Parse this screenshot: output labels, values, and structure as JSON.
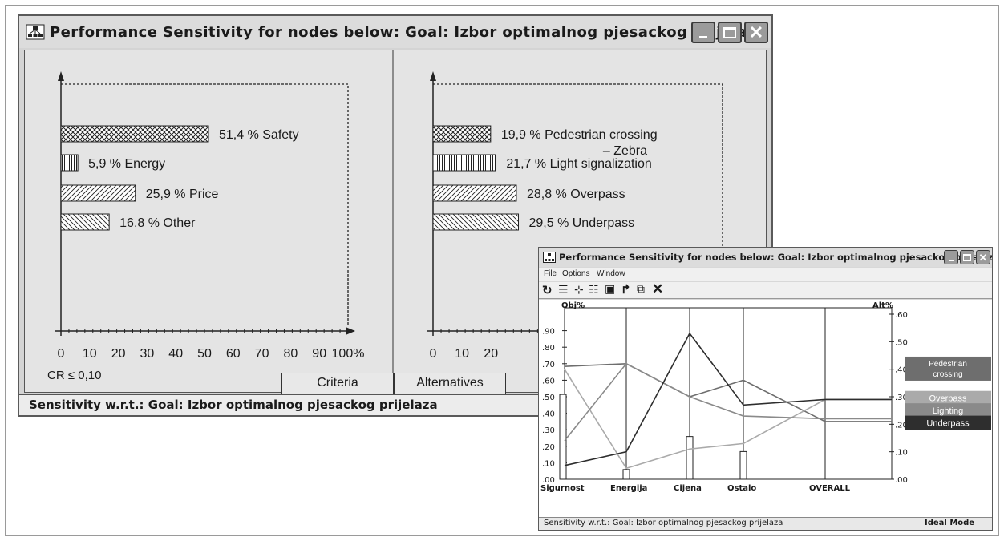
{
  "colors": {
    "window_bg": "#d4d4d4",
    "panel_bg": "#e4e4e4",
    "frame": "#5a5a5a",
    "legend_pedestrian": "#6e6e6e",
    "legend_overpass": "#aaaaaa",
    "legend_lighting": "#8a8a8a",
    "legend_underpass": "#2e2e2e"
  },
  "main_window": {
    "title": "Performance Sensitivity for nodes below: Goal: Izbor optimalnog pjesackog prijelaza",
    "app_icon": "network-icon",
    "controls": {
      "minimize": "minimize-icon",
      "maximize": "maximize-icon",
      "close": "close-icon"
    },
    "criteria_chart": {
      "bars": [
        {
          "value": 51.4,
          "label": "51,4 %",
          "name": "Safety",
          "pattern": "crosshatch"
        },
        {
          "value": 5.9,
          "label": "5,9 %",
          "name": "Energy",
          "pattern": "vertical"
        },
        {
          "value": 25.9,
          "label": "25,9 %",
          "name": "Price",
          "pattern": "diagonal"
        },
        {
          "value": 16.8,
          "label": "16,8 %",
          "name": "Other",
          "pattern": "backdiagonal"
        }
      ],
      "ticks": [
        "0",
        "10",
        "20",
        "30",
        "40",
        "50",
        "60",
        "70",
        "80",
        "90",
        "100%"
      ]
    },
    "alternatives_chart": {
      "bars": [
        {
          "value": 19.9,
          "label": "19,9 %",
          "name": "Pedestrian crossing",
          "name2": "– Zebra",
          "pattern": "crosshatch"
        },
        {
          "value": 21.7,
          "label": "21,7 %",
          "name": "Light signalization",
          "pattern": "vertical"
        },
        {
          "value": 28.8,
          "label": "28,8 %",
          "name": "Overpass",
          "pattern": "diagonal"
        },
        {
          "value": 29.5,
          "label": "29,5 %",
          "name": "Underpass",
          "pattern": "backdiagonal"
        }
      ],
      "ticks": [
        "0",
        "10",
        "20"
      ]
    },
    "cr_text": "CR ≤ 0,10",
    "tabs": {
      "criteria": "Criteria",
      "alternatives": "Alternatives"
    },
    "status": "Sensitivity w.r.t.: Goal: Izbor optimalnog pjesackog prijelaza"
  },
  "small_window": {
    "title": "Performance Sensitivity for nodes below: Goal: Izbor optimalnog pjesackog prijelaza",
    "menu": [
      "File",
      "Options",
      "Window"
    ],
    "toolbar_icons": [
      "refresh-icon",
      "bar-chart-icon",
      "sensitivity-icon",
      "gradient-icon",
      "two-d-icon",
      "redo-icon",
      "windows-icon",
      "close-icon"
    ],
    "status": "Sensitivity w.r.t.: Goal: Izbor optimalnog pjesackog prijelaza",
    "mode": "Ideal Mode"
  },
  "chart_data": [
    {
      "type": "bar",
      "categories": [
        "Safety",
        "Energy",
        "Price",
        "Other"
      ],
      "values": [
        51.4,
        5.9,
        25.9,
        16.8
      ],
      "xlim": [
        0,
        100
      ],
      "title": "",
      "xlabel": "",
      "ylabel": ""
    },
    {
      "type": "bar",
      "categories": [
        "Pedestrian crossing – Zebra",
        "Light signalization",
        "Overpass",
        "Underpass"
      ],
      "values": [
        19.9,
        21.7,
        28.8,
        29.5
      ],
      "title": "",
      "xlabel": "",
      "ylabel": ""
    },
    {
      "type": "line",
      "x": [
        "Sigurnost",
        "Energija",
        "Cijena",
        "Ostalo",
        "OVERALL"
      ],
      "left_axis_label": "Obj%",
      "right_axis_label": "Alt%",
      "left_ticks": [
        ".00",
        ".10",
        ".20",
        ".30",
        ".40",
        ".50",
        ".60",
        ".70",
        ".80",
        ".90"
      ],
      "right_ticks": [
        ".00",
        ".10",
        ".20",
        ".30",
        ".40",
        ".50",
        ".60"
      ],
      "ylim_left": [
        0,
        1.0
      ],
      "ylim_right": [
        0,
        0.6
      ],
      "objective_bars": [
        0.514,
        0.059,
        0.259,
        0.168
      ],
      "series": [
        {
          "name": "Pedestrian crossing",
          "color": "#6e6e6e",
          "values": [
            0.41,
            0.42,
            0.3,
            0.36,
            0.21
          ]
        },
        {
          "name": "Overpass",
          "color": "#aaaaaa",
          "values": [
            0.4,
            0.04,
            0.11,
            0.13,
            0.29
          ]
        },
        {
          "name": "Lighting",
          "color": "#8a8a8a",
          "values": [
            0.14,
            0.42,
            0.3,
            0.23,
            0.22
          ]
        },
        {
          "name": "Underpass",
          "color": "#2e2e2e",
          "values": [
            0.05,
            0.1,
            0.53,
            0.27,
            0.29
          ]
        }
      ],
      "legend": [
        "Pedestrian crossing",
        "Overpass",
        "Lighting",
        "Underpass"
      ]
    }
  ]
}
